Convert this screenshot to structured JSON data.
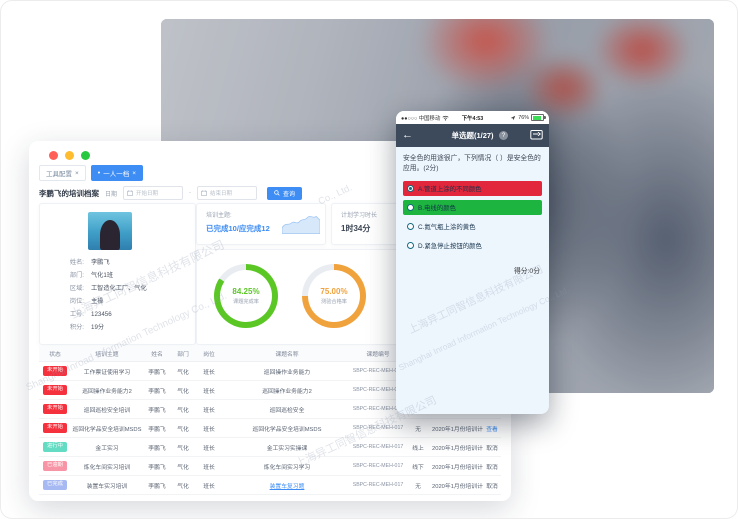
{
  "window": {
    "tabs": [
      {
        "label": "工具配置",
        "close": "×"
      },
      {
        "label": "一人一档",
        "close": "×"
      }
    ],
    "title": "李鹏飞的培训档案",
    "filter": {
      "date_label": "日期",
      "start_placeholder": "开始日期",
      "separator": "-",
      "end_placeholder": "结束日期",
      "search_label": "查询"
    },
    "profile": {
      "fields": [
        {
          "label": "姓名:",
          "value": "李鹏飞"
        },
        {
          "label": "部门:",
          "value": "气化1班"
        },
        {
          "label": "区域:",
          "value": "工智造化工厂、气化"
        },
        {
          "label": "岗位:",
          "value": "主操"
        },
        {
          "label": "工号:",
          "value": "123456"
        },
        {
          "label": "积分:",
          "value": "19分"
        }
      ]
    },
    "stats": {
      "topic_label": "培训主题:",
      "topic_value": "已完成10/应完成12",
      "duration_label": "计划学习时长",
      "duration_value": "1时34分"
    },
    "donuts": [
      {
        "value": "84.25%",
        "label": "课题完成率",
        "pct": 84.25,
        "color": "#5ac725"
      },
      {
        "value": "75.00%",
        "label": "测验合格率",
        "pct": 75,
        "color": "#f0a23c"
      }
    ],
    "table": {
      "headers": [
        "状态",
        "培训主题",
        "姓名",
        "部门",
        "岗位",
        "课题名称",
        "课题编号",
        "",
        "",
        ""
      ],
      "rows": [
        {
          "status": "未开始",
          "status_type": "red",
          "topic": "工作票证使用学习",
          "name": "李鹏飞",
          "dept": "气化",
          "post": "班长",
          "course": "巡回操作业务能力",
          "course_link": false,
          "code": "SBPC-REC-MEH-017",
          "mode": "",
          "plan": "",
          "action": ""
        },
        {
          "status": "未开始",
          "status_type": "red",
          "topic": "巡回操作业务能力2",
          "name": "李鹏飞",
          "dept": "气化",
          "post": "班长",
          "course": "巡回操作业务能力2",
          "course_link": false,
          "code": "SBPC-REC-MEH-017",
          "mode": "",
          "plan": "",
          "action": ""
        },
        {
          "status": "未开始",
          "status_type": "red",
          "topic": "巡回巡检安全培训",
          "name": "李鹏飞",
          "dept": "气化",
          "post": "班长",
          "course": "巡回巡检安全",
          "course_link": false,
          "code": "SBPC-REC-MEH-017",
          "mode": "",
          "plan": "",
          "action": ""
        },
        {
          "status": "未开始",
          "status_type": "red",
          "topic": "巡回化学品安全培训MSDS",
          "name": "李鹏飞",
          "dept": "气化",
          "post": "班长",
          "course": "巡回化学品安全培训MSDS",
          "course_link": false,
          "code": "SBPC-REC-MEH-017",
          "mode": "无",
          "plan": "2020年1月份培训计划",
          "action": "查看"
        },
        {
          "status": "进行中",
          "status_type": "teal",
          "topic": "金工实习",
          "name": "李鹏飞",
          "dept": "气化",
          "post": "班长",
          "course": "金工实习实操课",
          "course_link": false,
          "code": "SBPC-REC-MEH-017",
          "mode": "线上",
          "plan": "2020年1月份培训计划",
          "action": "取消"
        },
        {
          "status": "已逾期",
          "status_type": "pink",
          "topic": "炼化车间实习培训",
          "name": "李鹏飞",
          "dept": "气化",
          "post": "班长",
          "course": "炼化车间实习学习",
          "course_link": false,
          "code": "SBPC-REC-MEH-017",
          "mode": "线下",
          "plan": "2020年1月份培训计划",
          "action": "取消"
        },
        {
          "status": "已完成",
          "status_type": "purple",
          "topic": "装置车实习培训",
          "name": "李鹏飞",
          "dept": "气化",
          "post": "班长",
          "course": "装置车复习题",
          "course_link": true,
          "code": "SBPC-REC-MEH-017",
          "mode": "无",
          "plan": "2020年1月份培训计划",
          "action": "取消"
        }
      ]
    }
  },
  "phone": {
    "status_bar": {
      "carrier": "●●○○○ 中国移动",
      "time": "下午4:53",
      "battery": "76%"
    },
    "nav": {
      "back": "←",
      "title": "单选题(1/27)",
      "help": "?"
    },
    "question": "安全色的用途很广，下列情况（ ）是安全色的应用。(2分)",
    "options": [
      {
        "text": "A.管道上涂的不同颜色",
        "highlight": "red",
        "selected": true
      },
      {
        "text": "B.电线的颜色",
        "highlight": "green",
        "selected": false
      },
      {
        "text": "C.氮气瓶上涂的黄色",
        "highlight": "none",
        "selected": false
      },
      {
        "text": "D.紧急停止按钮的颜色",
        "highlight": "none",
        "selected": false
      }
    ],
    "score": "得分:0分"
  },
  "watermarks": [
    {
      "text": "上海异工同智信息科技有限公司",
      "class": "wm1"
    },
    {
      "text": "Shanghai Inroad Information Technology Co., Ltd.",
      "class": "wm2"
    },
    {
      "text": "上海异工同智信息科技有限公司",
      "class": "wm3"
    },
    {
      "text": "Shanghai Inroad Information Technology Co., Ltd.",
      "class": "wm4"
    },
    {
      "text": "Co., Ltd.",
      "class": "wm5"
    },
    {
      "text": "上海异工同智信息科技有限公司",
      "class": "wm6"
    }
  ],
  "colors": {
    "accent": "#3d8df5",
    "option_red": "#e2263c",
    "option_green": "#1db440",
    "donut_green": "#5ac725",
    "donut_orange": "#f0a23c"
  }
}
